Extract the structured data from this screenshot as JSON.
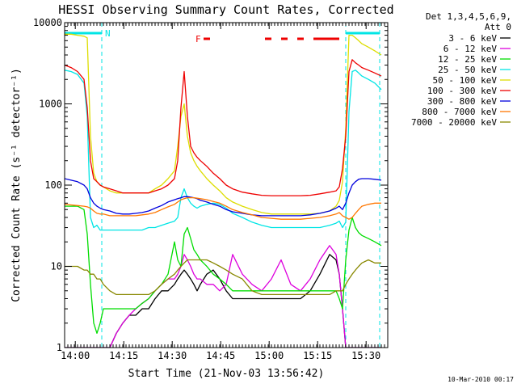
{
  "chart_data": {
    "type": "line",
    "title": "HESSI Observing Summary Count Rates, Corrected",
    "xlabel": "Start Time (21-Nov-03 13:56:42)",
    "ylabel": "Corrected Count Rate (s⁻¹ detector⁻¹)",
    "yscale": "log",
    "ylim": [
      1,
      10000
    ],
    "xlim": [
      0,
      100
    ],
    "x_unit": "minutes since 13:56:42",
    "yticks": [
      1,
      10,
      100,
      1000,
      10000
    ],
    "ytick_labels": [
      "1",
      "10",
      "100",
      "1000",
      "10000"
    ],
    "xticks": [
      3.3,
      18.3,
      33.3,
      48.3,
      63.3,
      78.3,
      93.3
    ],
    "xtick_labels": [
      "14:00",
      "14:15",
      "14:30",
      "14:45",
      "15:00",
      "15:15",
      "15:30"
    ],
    "date_stamp": "10-Mar-2010 00:17",
    "legend": {
      "header": [
        "Det 1,3,4,5,6,9,",
        "Att 0"
      ],
      "placement": "right"
    },
    "flags": [
      {
        "label": "N",
        "color": "#00e5e5",
        "segments": [
          [
            0,
            11.5
          ],
          [
            87,
            97.5
          ]
        ]
      },
      {
        "label": "F",
        "color": "#ee0000",
        "segments": [
          [
            43,
            45
          ],
          [
            62,
            64
          ],
          [
            67,
            69
          ],
          [
            72,
            74
          ],
          [
            77,
            85
          ]
        ]
      }
    ],
    "night_markers": [
      11.5,
      87,
      97.5
    ],
    "x": [
      0,
      2,
      4,
      6,
      7,
      8,
      9,
      10,
      11,
      12,
      14,
      16,
      18,
      20,
      22,
      24,
      26,
      28,
      30,
      32,
      34,
      35,
      36,
      37,
      38,
      39,
      40,
      41,
      42,
      44,
      46,
      48,
      50,
      52,
      55,
      58,
      61,
      64,
      67,
      70,
      73,
      76,
      79,
      82,
      84,
      85,
      86,
      87,
      88,
      89,
      90,
      91,
      92,
      94,
      96,
      98
    ],
    "series": [
      {
        "name": "3 - 6 keV",
        "color": "#000000",
        "values": [
          1,
          1,
          1,
          1,
          1,
          1,
          1,
          1,
          1,
          1,
          1,
          1.5,
          2,
          2.5,
          2.5,
          3,
          3,
          4,
          5,
          5,
          6,
          7,
          8,
          9,
          8,
          7,
          6,
          5,
          6,
          8,
          9,
          7,
          5,
          4,
          4,
          4,
          4,
          4,
          4,
          4,
          4,
          5,
          8,
          14,
          12,
          8,
          3,
          1,
          1,
          1,
          1,
          1,
          1,
          1,
          1,
          1
        ]
      },
      {
        "name": "6 - 12 keV",
        "color": "#dd00dd",
        "values": [
          1,
          1,
          1,
          1,
          1,
          1,
          1,
          1,
          1,
          1,
          1,
          1.5,
          2,
          2.5,
          3,
          3.5,
          4,
          5,
          6,
          7,
          7,
          8,
          10,
          14,
          12,
          10,
          8,
          7,
          7,
          6,
          6,
          5,
          6,
          14,
          8,
          6,
          5,
          7,
          12,
          6,
          5,
          7,
          12,
          18,
          14,
          8,
          3,
          1,
          1,
          1,
          1,
          1,
          1,
          1,
          1,
          1
        ]
      },
      {
        "name": "12 - 25 keV",
        "color": "#00dd00",
        "values": [
          55,
          55,
          55,
          50,
          25,
          6,
          2,
          1.5,
          2,
          3,
          3,
          3,
          3,
          3,
          3,
          3.5,
          4,
          5,
          6,
          8,
          20,
          12,
          10,
          25,
          30,
          22,
          16,
          14,
          12,
          10,
          8,
          7,
          6,
          5,
          5,
          5,
          5,
          5,
          5,
          5,
          5,
          5,
          5,
          5,
          5,
          4,
          3,
          12,
          28,
          40,
          30,
          26,
          24,
          22,
          20,
          18
        ]
      },
      {
        "name": "25 - 50 keV",
        "color": "#00e5e5",
        "values": [
          2600,
          2500,
          2300,
          1800,
          700,
          40,
          30,
          32,
          28,
          28,
          28,
          28,
          28,
          28,
          28,
          28,
          30,
          30,
          32,
          34,
          36,
          40,
          70,
          90,
          70,
          60,
          55,
          52,
          55,
          58,
          60,
          58,
          52,
          45,
          40,
          35,
          32,
          30,
          30,
          30,
          30,
          30,
          30,
          32,
          34,
          36,
          30,
          35,
          800,
          2500,
          2600,
          2400,
          2200,
          2000,
          1800,
          1500
        ]
      },
      {
        "name": "50 - 100 keV",
        "color": "#dddd00",
        "values": [
          7200,
          7200,
          7000,
          6800,
          6500,
          400,
          140,
          110,
          100,
          95,
          85,
          80,
          80,
          80,
          80,
          80,
          80,
          90,
          100,
          120,
          150,
          300,
          700,
          1000,
          400,
          250,
          200,
          170,
          150,
          120,
          100,
          85,
          70,
          62,
          55,
          50,
          46,
          44,
          44,
          44,
          44,
          44,
          45,
          48,
          55,
          65,
          110,
          500,
          7000,
          7000,
          6500,
          6000,
          5500,
          5000,
          4500,
          4000
        ]
      },
      {
        "name": "100 - 300 keV",
        "color": "#ee0000",
        "values": [
          3000,
          2800,
          2500,
          2000,
          900,
          200,
          120,
          110,
          100,
          95,
          90,
          85,
          80,
          80,
          80,
          80,
          80,
          85,
          90,
          100,
          120,
          200,
          900,
          2500,
          700,
          300,
          250,
          220,
          200,
          170,
          140,
          120,
          100,
          90,
          82,
          78,
          75,
          74,
          74,
          74,
          74,
          75,
          78,
          82,
          85,
          95,
          160,
          400,
          2500,
          3500,
          3200,
          3000,
          2800,
          2600,
          2400,
          2200
        ]
      },
      {
        "name": "300 - 800 keV",
        "color": "#0000dd",
        "values": [
          120,
          115,
          110,
          100,
          90,
          70,
          60,
          55,
          52,
          50,
          48,
          45,
          44,
          44,
          45,
          46,
          48,
          52,
          56,
          62,
          66,
          68,
          70,
          72,
          72,
          71,
          70,
          68,
          65,
          62,
          58,
          55,
          50,
          47,
          45,
          43,
          42,
          42,
          42,
          42,
          42,
          43,
          45,
          48,
          52,
          55,
          50,
          60,
          80,
          100,
          110,
          118,
          120,
          120,
          118,
          115
        ]
      },
      {
        "name": "800 - 7000 keV",
        "color": "#ff7700",
        "values": [
          58,
          57,
          56,
          55,
          54,
          52,
          48,
          45,
          44,
          44,
          42,
          42,
          42,
          42,
          42,
          43,
          44,
          46,
          50,
          54,
          58,
          62,
          66,
          68,
          70,
          70,
          70,
          69,
          68,
          66,
          63,
          60,
          55,
          50,
          46,
          43,
          40,
          39,
          38,
          38,
          38,
          39,
          40,
          42,
          44,
          46,
          42,
          40,
          38,
          40,
          45,
          50,
          55,
          58,
          60,
          60
        ]
      },
      {
        "name": "7000 - 20000 keV",
        "color": "#888800",
        "values": [
          10,
          10,
          10,
          9,
          9,
          8,
          8,
          7,
          7,
          6,
          5,
          4.5,
          4.5,
          4.5,
          4.5,
          4.5,
          4.5,
          5,
          6,
          7,
          8,
          9,
          10,
          11,
          12,
          12,
          12,
          12,
          12,
          12,
          11,
          10,
          9,
          8,
          7,
          5,
          4.5,
          4.5,
          4.5,
          4.5,
          4.5,
          4.5,
          4.5,
          4.5,
          5,
          5,
          5,
          6,
          7,
          8,
          9,
          10,
          11,
          12,
          11,
          11
        ]
      }
    ]
  }
}
